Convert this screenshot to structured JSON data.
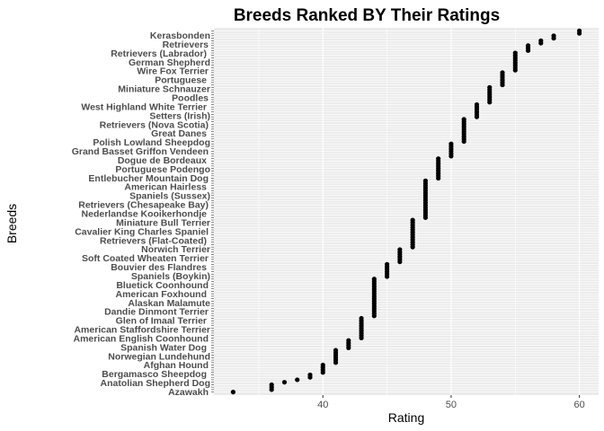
{
  "chart_data": {
    "type": "scatter",
    "title": "Breeds Ranked BY Their Ratings",
    "xlabel": "Rating",
    "ylabel": "Breeds",
    "xlim": [
      31.5,
      61.5
    ],
    "xticks": [
      40,
      50,
      60
    ],
    "grid": true,
    "legend": "none",
    "visible_breed_labels": [
      "Kerasbonden",
      "Retrievers",
      "Retrievers (Labrador)",
      "German Shepherd",
      "Wire Fox Terrier",
      "Portuguese",
      "Miniature Schnauzer",
      "Poodles",
      "West Highland White Terrier",
      "Setters (Irish)",
      "Retrievers (Nova Scotia)",
      "Great Danes",
      "Polish Lowland Sheepdog",
      "Grand Basset Griffon Vendeen",
      "Dogue de Bordeaux",
      "Portuguese Podengo",
      "Entlebucher Mountain Dog",
      "American Hairless",
      "Spaniels (Sussex)",
      "Retrievers (Chesapeake Bay)",
      "Nederlandse Kooikerhondje",
      "Miniature Bull Terrier",
      "Cavalier King Charles Spaniel",
      "Retrievers (Flat-Coated)",
      "Norwich Terrier",
      "Soft Coated Wheaten Terrier",
      "Bouvier des Flandres",
      "Spaniels (Boykin)",
      "Bluetick Coonhound",
      "American Foxhound",
      "Alaskan Malamute",
      "Dandie Dinmont Terrier",
      "Glen of Imaal Terrier",
      "American Staffordshire Terrier",
      "American English Coonhound",
      "Spanish Water Dog",
      "Norwegian Lundehund",
      "Afghan Hound",
      "Bergamasco Sheepdog",
      "Anatolian Shepherd Dog",
      "Azawakh"
    ],
    "series": [
      {
        "name": "Breeds",
        "color": "#000000",
        "rating_groups": [
          {
            "rating": 33,
            "count": 1
          },
          {
            "rating": 36,
            "count": 3
          },
          {
            "rating": 37,
            "count": 1
          },
          {
            "rating": 38,
            "count": 1
          },
          {
            "rating": 39,
            "count": 2
          },
          {
            "rating": 40,
            "count": 4
          },
          {
            "rating": 41,
            "count": 6
          },
          {
            "rating": 42,
            "count": 4
          },
          {
            "rating": 43,
            "count": 9
          },
          {
            "rating": 44,
            "count": 16
          },
          {
            "rating": 45,
            "count": 6
          },
          {
            "rating": 46,
            "count": 6
          },
          {
            "rating": 47,
            "count": 12
          },
          {
            "rating": 48,
            "count": 16
          },
          {
            "rating": 49,
            "count": 9
          },
          {
            "rating": 50,
            "count": 6
          },
          {
            "rating": 51,
            "count": 10
          },
          {
            "rating": 52,
            "count": 6
          },
          {
            "rating": 53,
            "count": 7
          },
          {
            "rating": 54,
            "count": 6
          },
          {
            "rating": 55,
            "count": 8
          },
          {
            "rating": 56,
            "count": 3
          },
          {
            "rating": 57,
            "count": 2
          },
          {
            "rating": 58,
            "count": 2
          },
          {
            "rating": 60,
            "count": 2
          }
        ]
      }
    ]
  }
}
